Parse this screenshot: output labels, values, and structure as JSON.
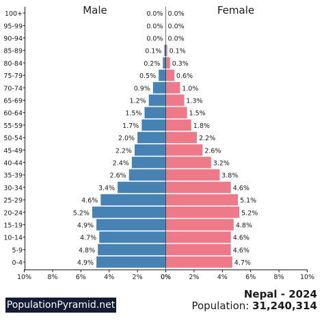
{
  "header": {
    "male_label": "Male",
    "female_label": "Female"
  },
  "footer": {
    "brand": "PopulationPyramid.net",
    "country_year": "Nepal - 2024",
    "population_label": "Population: ",
    "population_value": "31,240,314"
  },
  "colors": {
    "male": "#4682b4",
    "female": "#ee7989",
    "text": "#1a1a1a",
    "brand_bg": "#141b34"
  },
  "chart_data": {
    "type": "bar",
    "orientation": "horizontal-pyramid",
    "categories": [
      "100+",
      "95-99",
      "90-94",
      "85-89",
      "80-84",
      "75-79",
      "70-74",
      "65-69",
      "60-64",
      "55-59",
      "50-54",
      "45-49",
      "40-44",
      "35-39",
      "30-34",
      "25-29",
      "20-24",
      "15-19",
      "10-14",
      "5-9",
      "0-4"
    ],
    "series": [
      {
        "name": "Male",
        "values": [
          0.0,
          0.0,
          0.0,
          0.1,
          0.2,
          0.5,
          0.9,
          1.2,
          1.5,
          1.7,
          2.0,
          2.2,
          2.4,
          2.6,
          3.4,
          4.6,
          5.2,
          4.9,
          4.7,
          4.8,
          4.9
        ],
        "labels": [
          "0.0%",
          "0.0%",
          "0.0%",
          "0.1%",
          "0.2%",
          "0.5%",
          "0.9%",
          "1.2%",
          "1.5%",
          "1.7%",
          "2.0%",
          "2.2%",
          "2.4%",
          "2.6%",
          "3.4%",
          "4.6%",
          "5.2%",
          "4.9%",
          "4.7%",
          "4.8%",
          "4.9%"
        ]
      },
      {
        "name": "Female",
        "values": [
          0.0,
          0.0,
          0.0,
          0.1,
          0.3,
          0.6,
          1.0,
          1.3,
          1.5,
          1.8,
          2.2,
          2.6,
          3.2,
          3.8,
          4.6,
          5.1,
          5.2,
          4.8,
          4.6,
          4.6,
          4.7
        ],
        "labels": [
          "0.0%",
          "0.0%",
          "0.0%",
          "0.1%",
          "0.3%",
          "0.6%",
          "1.0%",
          "1.3%",
          "1.5%",
          "1.8%",
          "2.2%",
          "2.6%",
          "3.2%",
          "3.8%",
          "4.6%",
          "5.1%",
          "5.2%",
          "4.8%",
          "4.6%",
          "4.6%",
          "4.7%"
        ]
      }
    ],
    "xlim": [
      0,
      10
    ],
    "x_ticks_male": [
      "10%",
      "8%",
      "6%",
      "4%",
      "2%",
      "0%"
    ],
    "x_ticks_female": [
      "0%",
      "2%",
      "4%",
      "6%",
      "8%",
      "10%"
    ],
    "grid": false,
    "xlabel": "",
    "ylabel": ""
  }
}
